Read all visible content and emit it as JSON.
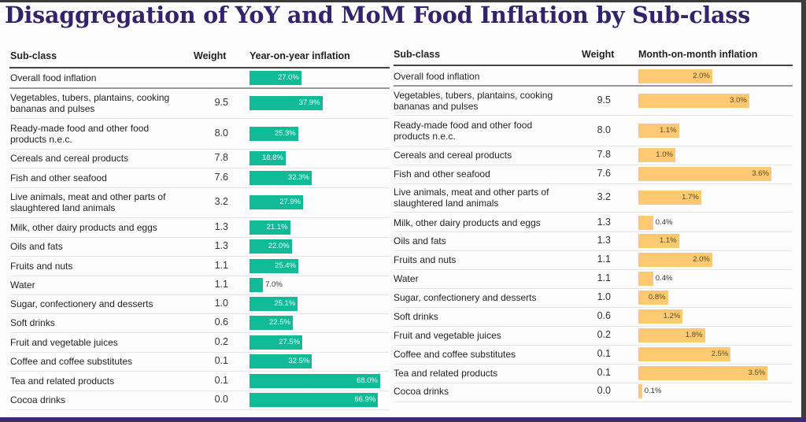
{
  "title": "Disaggregation of YoY and MoM Food Inflation by Sub-class",
  "colors": {
    "yoy": "#12bb98",
    "mom": "#fec972",
    "title": "#33236b"
  },
  "chart_data": [
    {
      "type": "bar",
      "orientation": "horizontal",
      "title": "Year-on-year inflation",
      "columns": [
        "Sub-class",
        "Weight",
        "Year-on-year inflation"
      ],
      "xlim": [
        0,
        70
      ],
      "unit": "%",
      "categories": [
        "Overall food inflation",
        "Vegetables, tubers, plantains, cooking bananas and pulses",
        "Ready-made food and other food products n.e.c.",
        "Cereals and cereal products",
        "Fish and other seafood",
        "Live animals, meat and other parts of slaughtered land animals",
        "Milk, other dairy products and eggs",
        "Oils and fats",
        "Fruits and nuts",
        "Water",
        "Sugar, confectionery and desserts",
        "Soft drinks",
        "Fruit and vegetable juices",
        "Coffee and coffee substitutes",
        "Tea and related products",
        "Cocoa drinks"
      ],
      "labels": [
        [
          "Overall food inflation"
        ],
        [
          "Vegetables, tubers, plantains, cooking",
          "bananas and pulses"
        ],
        [
          "Ready-made food and other food",
          "products n.e.c."
        ],
        [
          "Cereals and cereal products"
        ],
        [
          "Fish and other seafood"
        ],
        [
          "Live animals, meat and other parts of",
          "slaughtered land animals"
        ],
        [
          "Milk, other dairy products and eggs"
        ],
        [
          "Oils and fats"
        ],
        [
          "Fruits and nuts"
        ],
        [
          "Water"
        ],
        [
          "Sugar, confectionery and desserts"
        ],
        [
          "Soft drinks"
        ],
        [
          "Fruit and vegetable juices"
        ],
        [
          "Coffee and coffee substitutes"
        ],
        [
          "Tea and related products"
        ],
        [
          "Cocoa drinks"
        ]
      ],
      "weights": [
        "",
        "9.5",
        "8.0",
        "7.8",
        "7.6",
        "3.2",
        "1.3",
        "1.3",
        "1.1",
        "1.1",
        "1.0",
        "0.6",
        "0.2",
        "0.1",
        "0.1",
        "0.0"
      ],
      "values": [
        27.0,
        37.9,
        25.3,
        18.8,
        32.3,
        27.9,
        21.1,
        22.0,
        25.4,
        7.0,
        25.1,
        22.5,
        27.5,
        32.5,
        68.0,
        66.9
      ],
      "value_labels": [
        "27.0%",
        "37.9%",
        "25.3%",
        "18.8%",
        "32.3%",
        "27.9%",
        "21.1%",
        "22.0%",
        "25.4%",
        "7.0%",
        "25.1%",
        "22.5%",
        "27.5%",
        "32.5%",
        "68.0%",
        "66.9%"
      ]
    },
    {
      "type": "bar",
      "orientation": "horizontal",
      "title": "Month-on-month inflation",
      "columns": [
        "Sub-class",
        "Weight",
        "Month-on-month inflation"
      ],
      "xlim": [
        0,
        3.6
      ],
      "unit": "%",
      "categories": [
        "Overall food inflation",
        "Vegetables, tubers, plantains, cooking bananas and pulses",
        "Ready-made food and other food products n.e.c.",
        "Cereals and cereal products",
        "Fish and other seafood",
        "Live animals, meat and other parts of slaughtered land animals",
        "Milk, other dairy products and eggs",
        "Oils and fats",
        "Fruits and nuts",
        "Water",
        "Sugar, confectionery and desserts",
        "Soft drinks",
        "Fruit and vegetable juices",
        "Coffee and coffee substitutes",
        "Tea and related products",
        "Cocoa drinks"
      ],
      "labels": [
        [
          "Overall food inflation"
        ],
        [
          "Vegetables, tubers, plantains, cooking",
          "bananas and pulses"
        ],
        [
          "Ready-made food and other food",
          "products n.e.c."
        ],
        [
          "Cereals and cereal products"
        ],
        [
          "Fish and other seafood"
        ],
        [
          "Live animals, meat and other parts of",
          "slaughtered land animals"
        ],
        [
          "Milk, other dairy products and eggs"
        ],
        [
          "Oils and fats"
        ],
        [
          "Fruits and nuts"
        ],
        [
          "Water"
        ],
        [
          "Sugar, confectionery and desserts"
        ],
        [
          "Soft drinks"
        ],
        [
          "Fruit and vegetable juices"
        ],
        [
          "Coffee and coffee substitutes"
        ],
        [
          "Tea and related products"
        ],
        [
          "Cocoa drinks"
        ]
      ],
      "weights": [
        "",
        "9.5",
        "8.0",
        "7.8",
        "7.6",
        "3.2",
        "1.3",
        "1.3",
        "1.1",
        "1.1",
        "1.0",
        "0.6",
        "0.2",
        "0.1",
        "0.1",
        "0.0"
      ],
      "values": [
        2.0,
        3.0,
        1.1,
        1.0,
        3.6,
        1.7,
        0.4,
        1.1,
        2.0,
        0.4,
        0.8,
        1.2,
        1.8,
        2.5,
        3.5,
        0.1
      ],
      "value_labels": [
        "2.0%",
        "3.0%",
        "1.1%",
        "1.0%",
        "3.6%",
        "1.7%",
        "0.4%",
        "1.1%",
        "2.0%",
        "0.4%",
        "0.8%",
        "1.2%",
        "1.8%",
        "2.5%",
        "3.5%",
        "0.1%"
      ]
    }
  ]
}
